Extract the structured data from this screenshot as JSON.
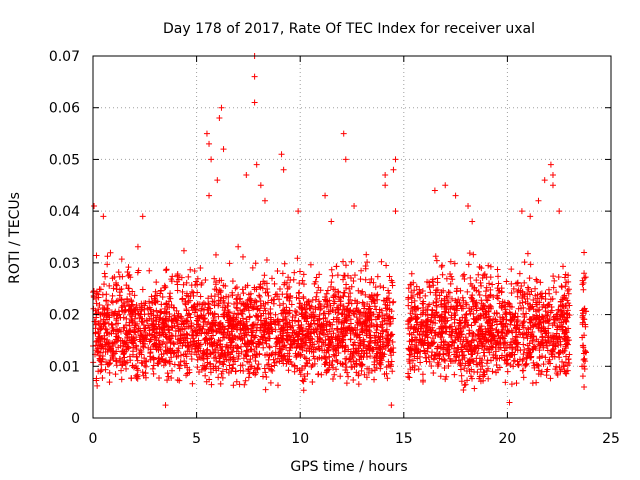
{
  "chart_data": {
    "type": "scatter",
    "title": "Day 178 of 2017, Rate Of TEC Index for receiver uxal",
    "xlabel": "GPS time / hours",
    "ylabel": "ROTI / TECUs",
    "xlim": [
      0,
      25
    ],
    "ylim": [
      0,
      0.07
    ],
    "x_ticks": [
      0,
      5,
      10,
      15,
      20,
      25
    ],
    "x_tick_labels": [
      "0",
      "5",
      "10",
      "15",
      "20",
      "25"
    ],
    "y_ticks": [
      0,
      0.01,
      0.02,
      0.03,
      0.04,
      0.05,
      0.06,
      0.07
    ],
    "y_tick_labels": [
      "0",
      "0.01",
      "0.02",
      "0.03",
      "0.04",
      "0.05",
      "0.06",
      "0.07"
    ],
    "grid": true,
    "marker": "plus",
    "series_color": "#ff0000",
    "density_profile": {
      "description": "Approximate ROTI point cloud: core band ~0.005-0.03 TECU across the day, with a data gap near 14.5-15.2 h and data ending near 23 h",
      "hour_segments": [
        [
          0,
          14.5
        ],
        [
          15.2,
          23.0
        ],
        [
          23.6,
          23.8
        ]
      ],
      "core_range": [
        0.005,
        0.03
      ],
      "typical": 0.013
    },
    "notable_points": [
      {
        "x": 0.05,
        "y": 0.041
      },
      {
        "x": 0.5,
        "y": 0.039
      },
      {
        "x": 2.4,
        "y": 0.039
      },
      {
        "x": 5.5,
        "y": 0.055
      },
      {
        "x": 5.6,
        "y": 0.053
      },
      {
        "x": 5.7,
        "y": 0.05
      },
      {
        "x": 5.6,
        "y": 0.043
      },
      {
        "x": 6.2,
        "y": 0.06
      },
      {
        "x": 6.1,
        "y": 0.058
      },
      {
        "x": 6.3,
        "y": 0.052
      },
      {
        "x": 6.0,
        "y": 0.046
      },
      {
        "x": 7.8,
        "y": 0.07
      },
      {
        "x": 7.8,
        "y": 0.066
      },
      {
        "x": 7.8,
        "y": 0.061
      },
      {
        "x": 7.9,
        "y": 0.049
      },
      {
        "x": 7.4,
        "y": 0.047
      },
      {
        "x": 8.1,
        "y": 0.045
      },
      {
        "x": 8.3,
        "y": 0.042
      },
      {
        "x": 9.1,
        "y": 0.051
      },
      {
        "x": 9.2,
        "y": 0.048
      },
      {
        "x": 9.9,
        "y": 0.04
      },
      {
        "x": 11.2,
        "y": 0.043
      },
      {
        "x": 11.5,
        "y": 0.038
      },
      {
        "x": 12.1,
        "y": 0.055
      },
      {
        "x": 12.2,
        "y": 0.05
      },
      {
        "x": 12.6,
        "y": 0.041
      },
      {
        "x": 14.1,
        "y": 0.047
      },
      {
        "x": 14.1,
        "y": 0.045
      },
      {
        "x": 14.6,
        "y": 0.05
      },
      {
        "x": 14.5,
        "y": 0.048
      },
      {
        "x": 14.6,
        "y": 0.04
      },
      {
        "x": 16.5,
        "y": 0.044
      },
      {
        "x": 17.0,
        "y": 0.045
      },
      {
        "x": 17.5,
        "y": 0.043
      },
      {
        "x": 18.1,
        "y": 0.041
      },
      {
        "x": 18.3,
        "y": 0.038
      },
      {
        "x": 20.7,
        "y": 0.04
      },
      {
        "x": 21.1,
        "y": 0.039
      },
      {
        "x": 21.5,
        "y": 0.042
      },
      {
        "x": 21.8,
        "y": 0.046
      },
      {
        "x": 22.1,
        "y": 0.049
      },
      {
        "x": 22.2,
        "y": 0.047
      },
      {
        "x": 22.2,
        "y": 0.045
      },
      {
        "x": 22.5,
        "y": 0.04
      },
      {
        "x": 23.7,
        "y": 0.032
      },
      {
        "x": 23.7,
        "y": 0.028
      },
      {
        "x": 23.7,
        "y": 0.021
      },
      {
        "x": 23.7,
        "y": 0.016
      },
      {
        "x": 23.7,
        "y": 0.01
      },
      {
        "x": 23.7,
        "y": 0.006
      },
      {
        "x": 14.4,
        "y": 0.0025
      },
      {
        "x": 3.5,
        "y": 0.0025
      },
      {
        "x": 20.1,
        "y": 0.003
      }
    ]
  }
}
